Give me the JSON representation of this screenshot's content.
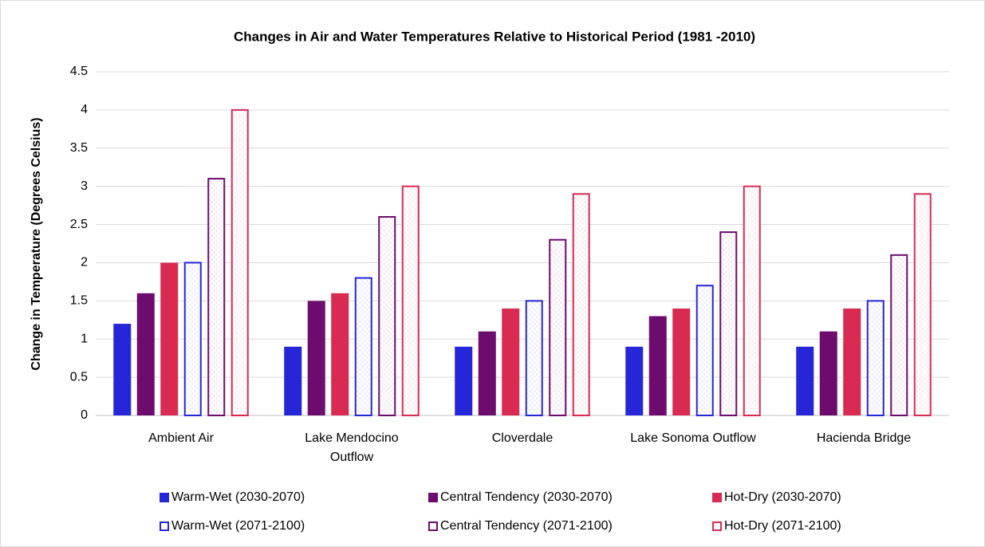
{
  "chart_data": {
    "type": "bar",
    "title": "Changes in Air and Water Temperatures Relative to Historical Period (1981 -2010)",
    "ylabel": "Change in Temperature (Degrees Celsius)",
    "categories": [
      "Ambient Air",
      "Lake Mendocino Outflow",
      "Cloverdale",
      "Lake Sonoma Outflow",
      "Hacienda Bridge"
    ],
    "series": [
      {
        "name": "Warm-Wet (2030-2070)",
        "color": "#2626d9",
        "filled": true,
        "values": [
          1.2,
          0.9,
          0.9,
          0.9,
          0.9
        ]
      },
      {
        "name": "Central Tendency (2030-2070)",
        "color": "#6e0b6e",
        "filled": true,
        "values": [
          1.6,
          1.5,
          1.1,
          1.3,
          1.1
        ]
      },
      {
        "name": "Hot-Dry (2030-2070)",
        "color": "#d92a52",
        "filled": true,
        "values": [
          2.0,
          1.6,
          1.4,
          1.4,
          1.4
        ]
      },
      {
        "name": "Warm-Wet (2071-2100)",
        "color": "#2626d9",
        "filled": false,
        "values": [
          2.0,
          1.8,
          1.5,
          1.7,
          1.5
        ]
      },
      {
        "name": "Central Tendency (2071-2100)",
        "color": "#6e0b6e",
        "filled": false,
        "values": [
          3.1,
          2.6,
          2.3,
          2.4,
          2.1
        ]
      },
      {
        "name": "Hot-Dry (2071-2100)",
        "color": "#d92a52",
        "filled": false,
        "values": [
          4.0,
          3.0,
          2.9,
          3.0,
          2.9
        ]
      }
    ],
    "ylim": [
      0,
      4.5
    ],
    "yticks": [
      0,
      0.5,
      1,
      1.5,
      2,
      2.5,
      3,
      3.5,
      4,
      4.5
    ],
    "grid": true,
    "legend": "bottom"
  }
}
